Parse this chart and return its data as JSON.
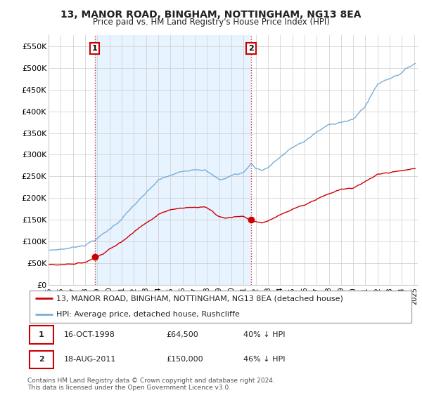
{
  "title": "13, MANOR ROAD, BINGHAM, NOTTINGHAM, NG13 8EA",
  "subtitle": "Price paid vs. HM Land Registry's House Price Index (HPI)",
  "ylabel_ticks": [
    "£0",
    "£50K",
    "£100K",
    "£150K",
    "£200K",
    "£250K",
    "£300K",
    "£350K",
    "£400K",
    "£450K",
    "£500K",
    "£550K"
  ],
  "ylim": [
    0,
    575000
  ],
  "xlim_start": 1995.0,
  "xlim_end": 2025.3,
  "legend_line1": "13, MANOR ROAD, BINGHAM, NOTTINGHAM, NG13 8EA (detached house)",
  "legend_line2": "HPI: Average price, detached house, Rushcliffe",
  "annotation1_label": "1",
  "annotation1_date": "16-OCT-1998",
  "annotation1_price": "£64,500",
  "annotation1_hpi": "40% ↓ HPI",
  "annotation2_label": "2",
  "annotation2_date": "18-AUG-2011",
  "annotation2_price": "£150,000",
  "annotation2_hpi": "46% ↓ HPI",
  "footnote": "Contains HM Land Registry data © Crown copyright and database right 2024.\nThis data is licensed under the Open Government Licence v3.0.",
  "purchase1_x": 1998.79,
  "purchase1_y": 64500,
  "purchase2_x": 2011.63,
  "purchase2_y": 150000,
  "red_color": "#cc0000",
  "blue_color": "#7aaed6",
  "shade_color": "#ddeeff",
  "marker_color": "#cc0000",
  "vline_color": "#cc3333",
  "grid_color": "#cccccc",
  "background_color": "#ffffff",
  "box_color": "#cc0000",
  "title_fontsize": 10,
  "subtitle_fontsize": 8.5,
  "tick_fontsize": 8,
  "legend_fontsize": 8,
  "annot_fontsize": 8,
  "footnote_fontsize": 6.5
}
